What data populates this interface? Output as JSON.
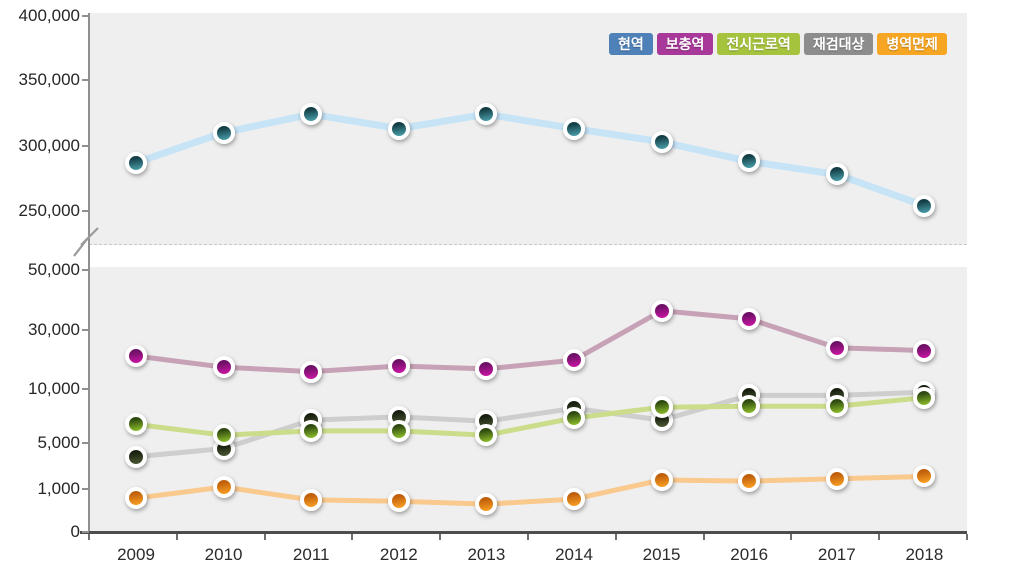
{
  "legend": {
    "items": [
      {
        "key": "active-duty",
        "label": "현역",
        "color": "#4f81b9"
      },
      {
        "key": "supplementary",
        "label": "보충역",
        "color": "#a8399a"
      },
      {
        "key": "wartime-labor",
        "label": "전시근로역",
        "color": "#a6c33e"
      },
      {
        "key": "reexamination",
        "label": "재검대상",
        "color": "#8d8d8d"
      },
      {
        "key": "exemption",
        "label": "병역면제",
        "color": "#f6a622"
      }
    ]
  },
  "chart_data": {
    "type": "line",
    "title": "",
    "x_categories": [
      "2009",
      "2010",
      "2011",
      "2012",
      "2013",
      "2014",
      "2015",
      "2016",
      "2017",
      "2018"
    ],
    "axis_break_between_panels": true,
    "legend_position": "top-right",
    "panels": [
      {
        "id": "upper",
        "ylim": [
          250000,
          400000
        ],
        "yticks": [
          {
            "label": "400,000",
            "value": 400000
          },
          {
            "label": "350,000",
            "value": 350000
          },
          {
            "label": "300,000",
            "value": 300000
          },
          {
            "label": "250,000",
            "value": 250000
          }
        ],
        "series": [
          {
            "key": "active-duty",
            "name": "현역",
            "line_color": "#c7e4f7",
            "line_width": 7,
            "dot_gradient": [
              "#143e46",
              "#4aa0ab"
            ],
            "values": [
              287000,
              310000,
              324000,
              313000,
              324000,
              313000,
              303000,
              288000,
              278000,
              254000
            ]
          }
        ]
      },
      {
        "id": "lower",
        "ylim": [
          0,
          50000
        ],
        "yticks": [
          {
            "label": "50,000",
            "value": 50000
          },
          {
            "label": "30,000",
            "value": 30000
          },
          {
            "label": "10,000",
            "value": 10000
          },
          {
            "label": "5,000",
            "value": 5000
          },
          {
            "label": "1,000",
            "value": 1000
          },
          {
            "label": "0",
            "value": 0
          }
        ],
        "series": [
          {
            "key": "supplementary",
            "name": "보충역",
            "line_color": "#c7a2b6",
            "line_width": 5,
            "dot_gradient": [
              "#6d1066",
              "#cb16a4"
            ],
            "values": [
              21200,
              17400,
              15900,
              17800,
              16800,
              19800,
              36400,
              33700,
              24000,
              23000
            ]
          },
          {
            "key": "reexamination",
            "name": "재검대상",
            "line_color": "#cecece",
            "line_width": 5,
            "dot_gradient": [
              "#181f10",
              "#4c5a34"
            ],
            "values": [
              3800,
              4500,
              7100,
              7400,
              7000,
              8200,
              7100,
              9400,
              9400,
              9700
            ]
          },
          {
            "key": "wartime-labor",
            "name": "전시근로역",
            "line_color": "#cbdd8b",
            "line_width": 5,
            "dot_gradient": [
              "#2f4a10",
              "#8fc02c"
            ],
            "values": [
              6700,
              5700,
              6100,
              6100,
              5700,
              7300,
              8300,
              8400,
              8400,
              9200
            ]
          },
          {
            "key": "exemption",
            "name": "병역면제",
            "line_color": "#fac98d",
            "line_width": 5,
            "dot_gradient": [
              "#bf5f0a",
              "#faa125"
            ],
            "values": [
              790,
              1200,
              750,
              720,
              650,
              770,
              1800,
              1700,
              1900,
              2100
            ]
          }
        ]
      }
    ]
  }
}
